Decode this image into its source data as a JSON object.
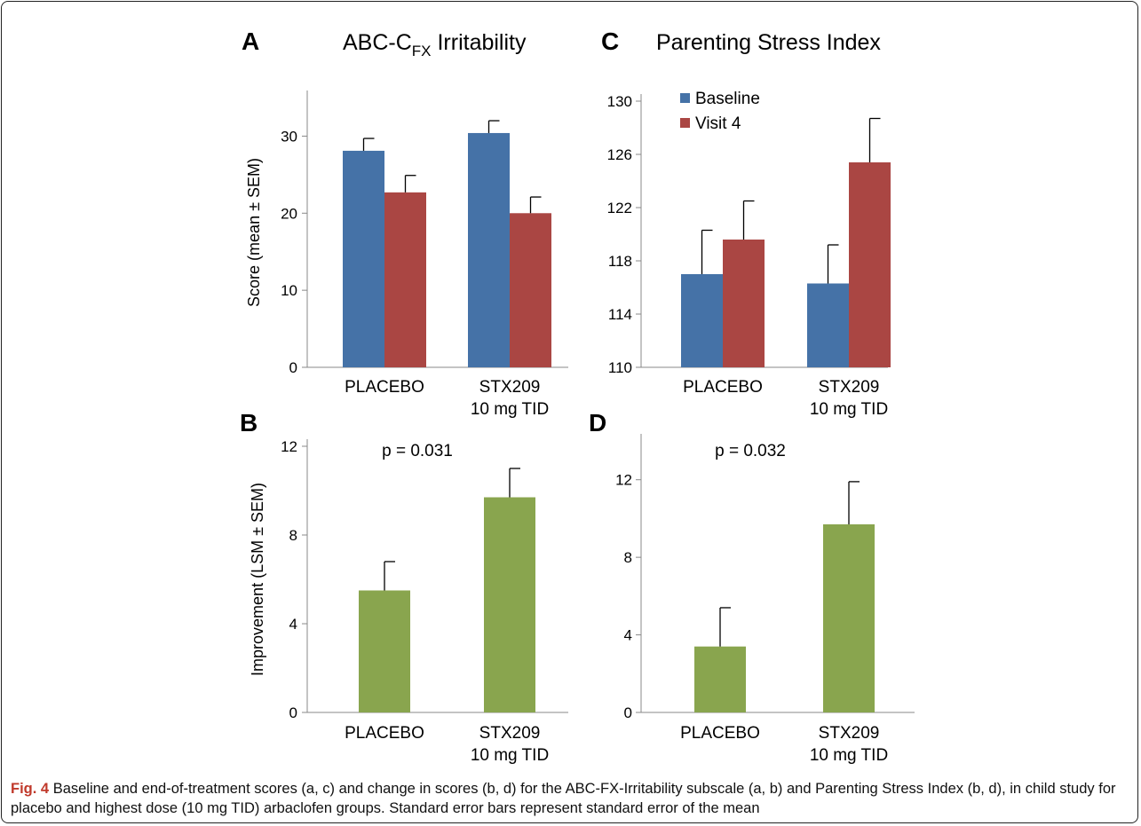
{
  "colors": {
    "baseline": "#4572A7",
    "visit4": "#AA4643",
    "improvement": "#89A54E",
    "caption_lead": "#c0392b"
  },
  "chart_data": [
    {
      "panel": "A",
      "type": "bar",
      "title": "ABC-C",
      "title_subscript": "FX",
      "title_suffix": " Irritability",
      "ylabel": "Score (mean ± SEM)",
      "xlabel": "",
      "ylim": [
        0,
        35
      ],
      "yticks": [
        0,
        10,
        20,
        30
      ],
      "categories": [
        [
          "PLACEBO"
        ],
        [
          "STX209",
          "10 mg TID"
        ]
      ],
      "series": [
        {
          "name": "Baseline",
          "color_key": "baseline",
          "values": [
            28.1,
            30.4
          ],
          "errors": [
            1.6,
            1.6
          ]
        },
        {
          "name": "Visit 4",
          "color_key": "visit4",
          "values": [
            22.7,
            20.0
          ],
          "errors": [
            2.2,
            2.1
          ]
        }
      ]
    },
    {
      "panel": "C",
      "type": "bar",
      "title": "Parenting Stress Index",
      "ylabel": "",
      "xlabel": "",
      "ylim": [
        110,
        130
      ],
      "yticks": [
        110,
        114,
        118,
        122,
        126,
        130
      ],
      "categories": [
        [
          "PLACEBO"
        ],
        [
          "STX209",
          "10 mg TID"
        ]
      ],
      "legend": {
        "position": "top-left",
        "entries": [
          "Baseline",
          "Visit 4"
        ]
      },
      "series": [
        {
          "name": "Baseline",
          "color_key": "baseline",
          "values": [
            117.0,
            116.3
          ],
          "errors": [
            3.3,
            2.9
          ]
        },
        {
          "name": "Visit 4",
          "color_key": "visit4",
          "values": [
            119.6,
            125.4
          ],
          "errors": [
            2.9,
            3.3
          ]
        }
      ]
    },
    {
      "panel": "B",
      "type": "bar",
      "title": "",
      "annotation": "p = 0.031",
      "ylabel": "Improvement  (LSM ± SEM)",
      "xlabel": "",
      "ylim": [
        0,
        12
      ],
      "yticks": [
        0,
        4,
        8,
        12
      ],
      "categories": [
        [
          "PLACEBO"
        ],
        [
          "STX209",
          "10 mg TID"
        ]
      ],
      "series": [
        {
          "color_key": "improvement",
          "values": [
            5.5,
            9.7
          ],
          "errors": [
            1.3,
            1.3
          ]
        }
      ]
    },
    {
      "panel": "D",
      "type": "bar",
      "title": "",
      "annotation": "p = 0.032",
      "ylabel": "",
      "xlabel": "",
      "ylim": [
        0,
        14
      ],
      "yticks": [
        0,
        4,
        8,
        12
      ],
      "categories": [
        [
          "PLACEBO"
        ],
        [
          "STX209",
          "10 mg TID"
        ]
      ],
      "series": [
        {
          "color_key": "improvement",
          "values": [
            3.4,
            9.7
          ],
          "errors": [
            2.0,
            2.2
          ]
        }
      ]
    }
  ],
  "caption": {
    "lead": "Fig. 4",
    "text": "Baseline and end-of-treatment scores (a, c) and change in scores (b, d) for the ABC-FX-Irritability subscale (a, b) and Parenting Stress Index (b, d), in child study for placebo and highest dose (10 mg TID) arbaclofen groups. Standard error bars represent standard error of the mean"
  }
}
